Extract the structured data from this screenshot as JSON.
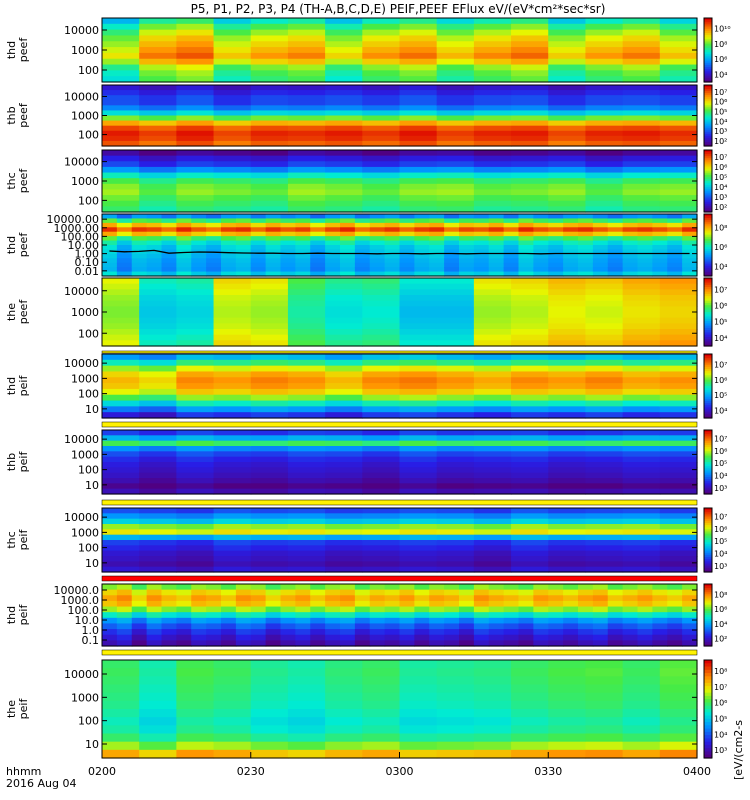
{
  "chart_data": {
    "type": "heatmap",
    "title": "P5, P1, P2, P3, P4 (TH-A,B,C,D,E) PEIF,PEEF EFlux eV/(eV*cm²*sec*sr)",
    "x_axis": {
      "label_line1": "hhmm",
      "label_line2": "2016 Aug 04",
      "ticks": [
        "0200",
        "0230",
        "0300",
        "0330",
        "0400"
      ]
    },
    "colorbar_label": "[eV/(cm2-s",
    "colorscale": "rainbow (purple → blue → cyan → green → yellow → orange → red)",
    "panels": [
      {
        "ylabel": [
          "thd",
          "peef"
        ],
        "yticks": [
          "10000",
          "1000",
          "100"
        ],
        "cbar_ticks": [
          "10¹⁰",
          "10⁸",
          "10⁶",
          "10⁴"
        ],
        "columns": 16,
        "profile": [
          0.45,
          0.55,
          0.62,
          0.68,
          0.72,
          0.76,
          0.8,
          0.72,
          0.6,
          0.55,
          0.52
        ],
        "mods": [
          -0.08,
          0.06,
          0.1,
          -0.04,
          0.02,
          0.05,
          -0.06,
          0.03,
          0.07,
          -0.02,
          0.04,
          0.08,
          -0.05,
          0.02,
          0.06,
          -0.03
        ]
      },
      {
        "ylabel": [
          "thb",
          "peef"
        ],
        "yticks": [
          "10000",
          "1000",
          "100"
        ],
        "cbar_ticks": [
          "10⁷",
          "10⁶",
          "10⁵",
          "10⁴",
          "10³",
          "10²"
        ],
        "columns": 16,
        "profile": [
          0.1,
          0.15,
          0.2,
          0.2,
          0.28,
          0.42,
          0.6,
          0.78,
          0.9,
          0.95,
          0.93,
          0.88
        ],
        "mods": [
          0.02,
          -0.02,
          0.03,
          -0.03,
          0.01,
          0.0,
          0.02,
          -0.01,
          0.03,
          -0.02,
          0.01,
          0.02,
          -0.03,
          0.01,
          0.02,
          0.0
        ]
      },
      {
        "ylabel": [
          "thc",
          "peef"
        ],
        "yticks": [
          "10000",
          "1000",
          "100"
        ],
        "cbar_ticks": [
          "10⁷",
          "10⁶",
          "10⁵",
          "10⁴",
          "10³",
          "10²"
        ],
        "columns": 16,
        "profile": [
          0.02,
          0.12,
          0.18,
          0.3,
          0.45,
          0.55,
          0.6,
          0.62,
          0.58,
          0.55,
          0.52
        ],
        "mods": [
          0.03,
          -0.03,
          0.02,
          0.0,
          -0.02,
          0.03,
          0.01,
          -0.02,
          0.02,
          0.03,
          -0.01,
          0.0,
          0.02,
          -0.03,
          0.01,
          0.02
        ]
      },
      {
        "ylabel": [
          "thd",
          "peef"
        ],
        "yticks": [
          "10000.00",
          "1000.00",
          "100.00",
          "10.00",
          "1.00",
          "0.10",
          "0.01"
        ],
        "cbar_ticks": [
          "10⁸",
          "10⁶",
          "10⁴"
        ],
        "columns": 40,
        "profile": [
          0.3,
          0.55,
          0.75,
          0.9,
          0.75,
          0.55,
          0.45,
          0.4,
          0.38,
          0.36,
          0.34,
          0.33,
          0.32,
          0.4
        ],
        "mods": [
          0.05,
          -0.05,
          0.04,
          0.02,
          -0.03,
          0.06,
          0.0,
          -0.04,
          0.03,
          0.05,
          -0.02,
          0.04,
          0.0,
          0.03,
          -0.05,
          0.02,
          0.06,
          -0.03,
          0.01,
          0.04,
          -0.02,
          0.03,
          0.05,
          -0.04,
          0.02,
          0.0,
          0.04,
          -0.03,
          0.06,
          0.01,
          -0.02,
          0.03,
          0.05,
          0.0,
          -0.04,
          0.02,
          0.04,
          0.01,
          -0.03,
          0.05
        ],
        "line_values": [
          2.6,
          2.2,
          2.4,
          3.0,
          1.6,
          1.9,
          2.1,
          2.0,
          1.8,
          1.7,
          1.6,
          1.6,
          1.5,
          1.5,
          1.6,
          1.5,
          1.5,
          1.5,
          1.4,
          1.5,
          1.5,
          1.4,
          1.5,
          1.5,
          1.4,
          1.5,
          1.5,
          1.5,
          1.5,
          1.4,
          1.5,
          1.5,
          1.5,
          1.5,
          1.5,
          1.5,
          1.5,
          1.5,
          1.5,
          1.5
        ]
      },
      {
        "ylabel": [
          "the",
          "peef"
        ],
        "yticks": [
          "10000",
          "1000",
          "100"
        ],
        "cbar_ticks": [
          "10⁷",
          "10⁶",
          "10⁵",
          "10⁴"
        ],
        "columns": 16,
        "profile": [
          0.7,
          0.68,
          0.66,
          0.64,
          0.63,
          0.62,
          0.62,
          0.63,
          0.64,
          0.66,
          0.68,
          0.7
        ],
        "mods": [
          0.0,
          -0.22,
          -0.2,
          0.04,
          0.02,
          -0.12,
          -0.18,
          -0.16,
          -0.24,
          -0.24,
          0.02,
          0.04,
          0.08,
          0.06,
          0.1,
          0.12
        ]
      },
      {
        "ylabel": [
          "thd",
          "peif"
        ],
        "yticks": [
          "10000",
          "1000",
          "100",
          "10"
        ],
        "cbar_ticks": [
          "10⁷",
          "10⁶",
          "10⁵",
          "10⁴"
        ],
        "columns": 16,
        "profile": [
          0.35,
          0.5,
          0.66,
          0.76,
          0.8,
          0.78,
          0.72,
          0.6,
          0.45,
          0.3,
          0.15
        ],
        "mods": [
          -0.02,
          -0.06,
          0.04,
          0.02,
          0.05,
          0.03,
          -0.02,
          0.04,
          0.06,
          0.03,
          0.0,
          0.04,
          0.02,
          0.05,
          0.01,
          0.03
        ]
      },
      {
        "ylabel": [
          "thb",
          "peif"
        ],
        "yticks": [
          "10000",
          "1000",
          "100",
          "10"
        ],
        "cbar_ticks": [
          "10⁷",
          "10⁶",
          "10⁵",
          "10⁴",
          "10³"
        ],
        "columns": 16,
        "profile": [
          0.18,
          0.35,
          0.55,
          0.3,
          0.2,
          0.15,
          0.12,
          0.1,
          0.08,
          0.05,
          0.0,
          0.06
        ],
        "mods": [
          0.02,
          -0.02,
          0.03,
          0.0,
          -0.01,
          0.02,
          0.01,
          -0.02,
          0.03,
          0.0,
          0.01,
          0.02,
          -0.01,
          0.0,
          0.02,
          0.01
        ]
      },
      {
        "ylabel": [
          "thc",
          "peif"
        ],
        "yticks": [
          "10000",
          "1000",
          "100",
          "10"
        ],
        "cbar_ticks": [
          "10⁷",
          "10⁶",
          "10⁵",
          "10⁴",
          "10³"
        ],
        "columns": 16,
        "profile": [
          0.2,
          0.3,
          0.4,
          0.62,
          0.7,
          0.35,
          0.18,
          0.14,
          0.1,
          0.08,
          0.05,
          0.1
        ],
        "mods": [
          0.02,
          0.0,
          -0.02,
          0.03,
          0.01,
          0.02,
          -0.01,
          0.0,
          0.02,
          0.01,
          -0.02,
          0.03,
          0.0,
          0.01,
          0.02,
          -0.01
        ]
      },
      {
        "ylabel": [
          "thd",
          "peif"
        ],
        "yticks": [
          "10000.0",
          "1000.0",
          "100.0",
          "10.0",
          "1.0",
          "0.1"
        ],
        "cbar_ticks": [
          "10⁸",
          "10⁶",
          "10⁴",
          "10²"
        ],
        "columns": 40,
        "profile": [
          0.6,
          0.72,
          0.78,
          0.74,
          0.62,
          0.45,
          0.3,
          0.22,
          0.15,
          0.1,
          0.05
        ],
        "mods": [
          0.02,
          0.06,
          -0.04,
          0.05,
          0.0,
          -0.03,
          0.04,
          0.02,
          -0.02,
          0.05,
          0.03,
          -0.04,
          0.01,
          0.04,
          -0.02,
          0.03,
          0.05,
          -0.03,
          0.02,
          0.0,
          0.04,
          -0.02,
          0.03,
          0.01,
          -0.04,
          0.05,
          0.02,
          0.0,
          -0.03,
          0.04,
          0.02,
          -0.01,
          0.03,
          0.05,
          -0.02,
          0.01,
          0.04,
          0.0,
          -0.03,
          0.02
        ]
      },
      {
        "ylabel": [
          "the",
          "peif"
        ],
        "yticks": [
          "10000",
          "1000",
          "100",
          "10"
        ],
        "cbar_ticks": [
          "10⁸",
          "10⁷",
          "10⁶",
          "10⁵",
          "10⁴",
          "10³"
        ],
        "columns": 16,
        "profile": [
          0.55,
          0.56,
          0.55,
          0.54,
          0.53,
          0.52,
          0.5,
          0.48,
          0.5,
          0.55,
          0.65,
          0.8
        ],
        "mods": [
          0.0,
          -0.06,
          0.02,
          0.0,
          -0.04,
          -0.06,
          -0.02,
          0.0,
          -0.05,
          -0.04,
          -0.03,
          0.0,
          0.02,
          0.03,
          0.0,
          0.04
        ]
      }
    ]
  }
}
